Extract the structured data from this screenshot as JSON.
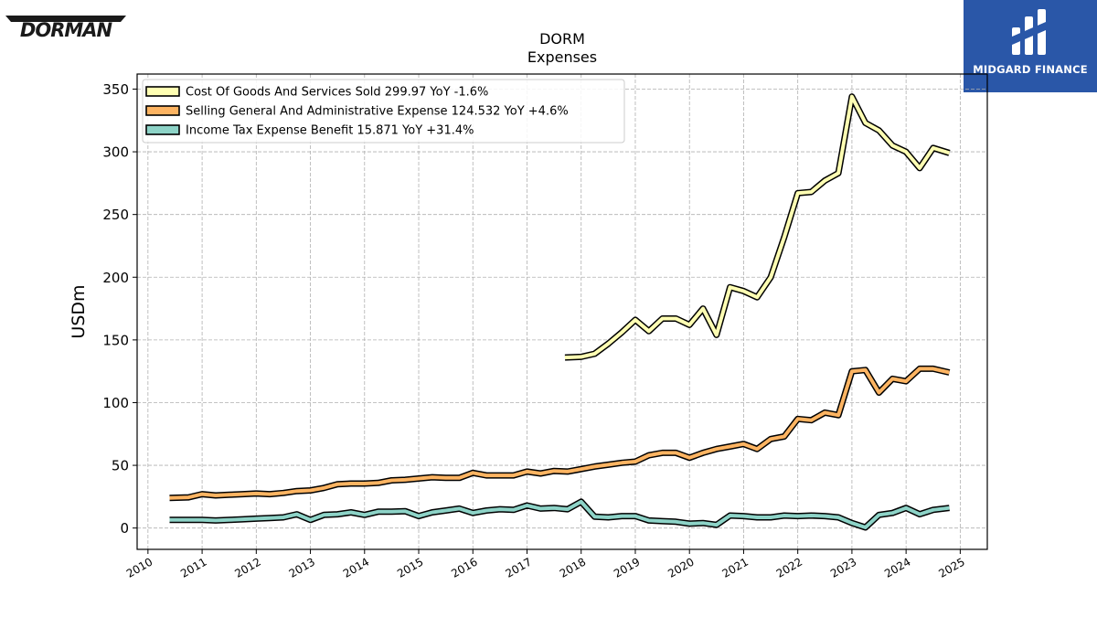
{
  "brand": {
    "left_logo_text": "DORMAN",
    "right_logo_text": "MIDGARD FINANCE"
  },
  "chart_data": {
    "type": "line",
    "title": "DORM",
    "subtitle": "Expenses",
    "ylabel": "USDm",
    "xlabel": "",
    "xlim": [
      2009.8,
      2025.5
    ],
    "ylim": [
      -17,
      362
    ],
    "yticks": [
      0,
      50,
      100,
      150,
      200,
      250,
      300,
      350
    ],
    "xticks": [
      2010,
      2011,
      2012,
      2013,
      2014,
      2015,
      2016,
      2017,
      2018,
      2019,
      2020,
      2021,
      2022,
      2023,
      2024,
      2025
    ],
    "grid": true,
    "legend_position": "top-left",
    "series": [
      {
        "name": "Cost Of Goods And Services Sold",
        "legend_label": "Cost Of Goods And Services Sold  299.97 YoY -1.6%",
        "color": "#ffffb3",
        "x": [
          2017.7,
          2018.0,
          2018.25,
          2018.5,
          2018.75,
          2019.0,
          2019.25,
          2019.5,
          2019.75,
          2020.0,
          2020.25,
          2020.5,
          2020.75,
          2021.0,
          2021.25,
          2021.5,
          2021.75,
          2022.0,
          2022.25,
          2022.5,
          2022.75,
          2023.0,
          2023.25,
          2023.5,
          2023.75,
          2024.0,
          2024.25,
          2024.5,
          2024.8
        ],
        "values": [
          136,
          136.5,
          139,
          147,
          156,
          166,
          157,
          167,
          167,
          162,
          175,
          154,
          192,
          189,
          184,
          200,
          232,
          267,
          268,
          277,
          283,
          344,
          323,
          317,
          305,
          300,
          287,
          303,
          299
        ]
      },
      {
        "name": "Selling General And Administrative Expense",
        "legend_label": "Selling General And Administrative Expense  124.532 YoY +4.6%",
        "color": "#fdb462",
        "x": [
          2010.4,
          2010.75,
          2011.0,
          2011.25,
          2011.5,
          2011.75,
          2012.0,
          2012.25,
          2012.5,
          2012.75,
          2013.0,
          2013.25,
          2013.5,
          2013.75,
          2014.0,
          2014.25,
          2014.5,
          2014.75,
          2015.0,
          2015.25,
          2015.5,
          2015.75,
          2016.0,
          2016.25,
          2016.5,
          2016.75,
          2017.0,
          2017.25,
          2017.5,
          2017.75,
          2018.0,
          2018.25,
          2018.5,
          2018.75,
          2019.0,
          2019.25,
          2019.5,
          2019.75,
          2020.0,
          2020.25,
          2020.5,
          2020.75,
          2021.0,
          2021.25,
          2021.5,
          2021.75,
          2022.0,
          2022.25,
          2022.5,
          2022.75,
          2023.0,
          2023.25,
          2023.5,
          2023.75,
          2024.0,
          2024.25,
          2024.5,
          2024.8
        ],
        "values": [
          24,
          24.5,
          27,
          26,
          26.5,
          27,
          27.5,
          27,
          28,
          29.5,
          30,
          32,
          35,
          35.5,
          35.5,
          36,
          38,
          38.5,
          39.5,
          40.5,
          40,
          40,
          44,
          42,
          42,
          42,
          45,
          43.5,
          45.5,
          45,
          47,
          49,
          50.5,
          52,
          53,
          58,
          60,
          60,
          56,
          60,
          63,
          65,
          67,
          63,
          71,
          73,
          87,
          86,
          92,
          90,
          125,
          126,
          108,
          119,
          117,
          127,
          127,
          124
        ]
      },
      {
        "name": "Income Tax Expense Benefit",
        "legend_label": "Income Tax Expense Benefit  15.871 YoY +31.4%",
        "color": "#8dd3c7",
        "x": [
          2010.4,
          2010.75,
          2011.0,
          2011.25,
          2011.5,
          2011.75,
          2012.0,
          2012.25,
          2012.5,
          2012.75,
          2013.0,
          2013.25,
          2013.5,
          2013.75,
          2014.0,
          2014.25,
          2014.5,
          2014.75,
          2015.0,
          2015.25,
          2015.5,
          2015.75,
          2016.0,
          2016.25,
          2016.5,
          2016.75,
          2017.0,
          2017.25,
          2017.5,
          2017.75,
          2018.0,
          2018.25,
          2018.5,
          2018.75,
          2019.0,
          2019.25,
          2019.5,
          2019.75,
          2020.0,
          2020.25,
          2020.5,
          2020.75,
          2021.0,
          2021.25,
          2021.5,
          2021.75,
          2022.0,
          2022.25,
          2022.5,
          2022.75,
          2023.0,
          2023.25,
          2023.5,
          2023.75,
          2024.0,
          2024.25,
          2024.5,
          2024.8
        ],
        "values": [
          6.5,
          6.5,
          6.5,
          6,
          6.5,
          7,
          7.5,
          8,
          8.5,
          11,
          6.5,
          10.5,
          11,
          12.5,
          10.5,
          13,
          13,
          13.5,
          9.5,
          12.5,
          14,
          15.5,
          12,
          14,
          15,
          14.5,
          18,
          15.5,
          16,
          15,
          21,
          9,
          8.5,
          9.5,
          9.5,
          6,
          5.5,
          5,
          3.5,
          4,
          2.5,
          10,
          9.5,
          8.5,
          8.5,
          10,
          9.5,
          10,
          9.5,
          8.5,
          4,
          0.5,
          10.5,
          12,
          16,
          11,
          14.5,
          16
        ]
      }
    ]
  }
}
